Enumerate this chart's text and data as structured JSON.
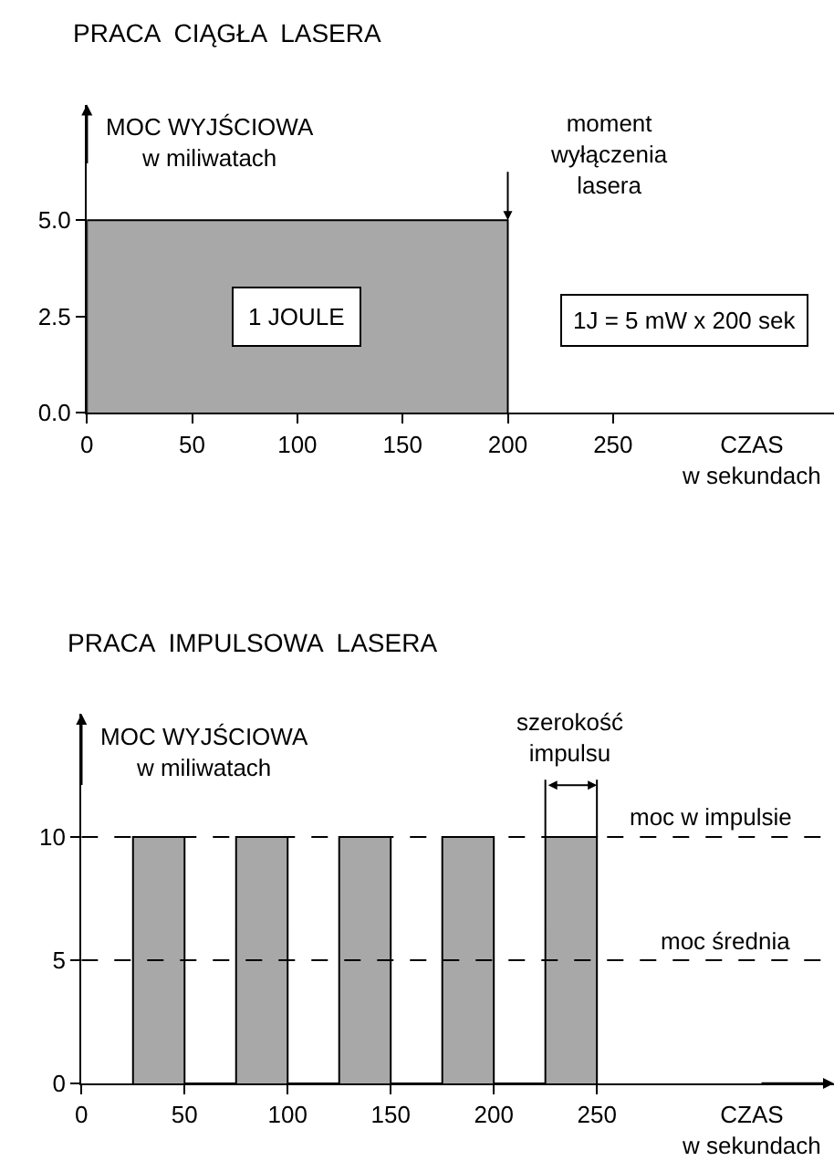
{
  "chart_data": [
    {
      "type": "area",
      "title": "PRACA  CIĄGŁA  LASERA",
      "xlabel": "CZAS\nw sekundach",
      "ylabel": "MOC WYJŚCIOWA\nw miliwatach",
      "x": [
        0,
        0,
        200,
        200
      ],
      "series": [
        {
          "color": "#a8a8a8",
          "values": [
            0,
            5,
            5,
            0
          ]
        }
      ],
      "xlim": [
        0,
        355
      ],
      "ylim": [
        0,
        8
      ],
      "xticks": [
        0,
        50,
        100,
        150,
        200,
        250
      ],
      "yticks": [
        {
          "value": 0,
          "label": "0.0"
        },
        {
          "value": 2.5,
          "label": "2.5"
        },
        {
          "value": 5,
          "label": "5.0"
        }
      ],
      "annotations": [
        "1 JOULE",
        "1J = 5 mW x 200 sek",
        {
          "text": "moment\nwyłączenia\nlasera",
          "x": 200,
          "y": 5
        }
      ]
    },
    {
      "type": "area",
      "title": "PRACA  IMPULSOWA  LASERA",
      "xlabel": "CZAS\nw sekundach",
      "ylabel": "MOC WYJŚCIOWA\nw miliwatach",
      "x": [
        25,
        25,
        50,
        50,
        75,
        75,
        100,
        100,
        125,
        125,
        150,
        150,
        175,
        175,
        200,
        200,
        225,
        225,
        250,
        250
      ],
      "series": [
        {
          "color": "#a8a8a8",
          "values": [
            0,
            10,
            10,
            0,
            0,
            10,
            10,
            0,
            0,
            10,
            10,
            0,
            0,
            10,
            10,
            0,
            0,
            10,
            10,
            0
          ]
        }
      ],
      "xlim": [
        0,
        365
      ],
      "ylim": [
        0,
        15
      ],
      "xticks": [
        0,
        50,
        100,
        150,
        200,
        250
      ],
      "yticks": [
        0,
        5,
        10
      ],
      "ref_lines": [
        {
          "axis": "y",
          "value": 10,
          "label": "moc w impulsie",
          "color": "#000000",
          "line_style": "dashed"
        },
        {
          "axis": "y",
          "value": 5,
          "label": "moc średnia",
          "color": "#000000",
          "line_style": "dashed"
        }
      ],
      "annotations": [
        {
          "text": "szerokość\nimpulsu",
          "x": 237.5,
          "y": 10
        }
      ]
    }
  ]
}
